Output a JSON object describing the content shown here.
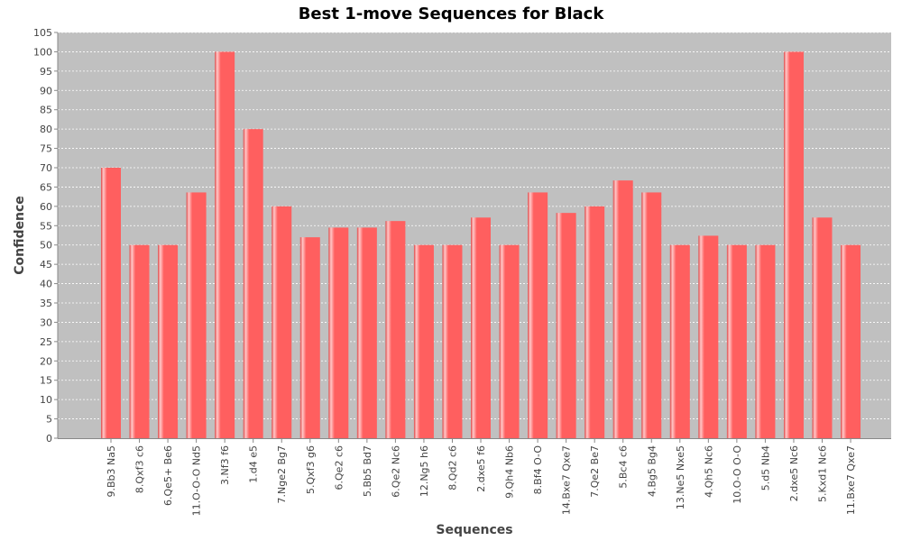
{
  "chart_data": {
    "type": "bar",
    "title": "Best 1-move Sequences for Black",
    "xlabel": "Sequences",
    "ylabel": "Confidence",
    "ylim": [
      0,
      105
    ],
    "y_ticks": [
      0,
      5,
      10,
      15,
      20,
      25,
      30,
      35,
      40,
      45,
      50,
      55,
      60,
      65,
      70,
      75,
      80,
      85,
      90,
      95,
      100,
      105
    ],
    "grid": true,
    "legend": "none",
    "categories": [
      "9.Bb3 Na5",
      "8.Qxf3 c6",
      "6.Qe5+ Be6",
      "11.O-O-O Nd5",
      "3.Nf3 f6",
      "1.d4 e5",
      "7.Nge2 Bg7",
      "5.Qxf3 g6",
      "6.Qe2 c6",
      "5.Bb5 Bd7",
      "6.Qe2 Nc6",
      "12.Ng5 h6",
      "8.Qd2 c6",
      "2.dxe5 f6",
      "9.Qh4 Nb6",
      "8.Bf4 O-O",
      "14.Bxe7 Qxe7",
      "7.Qe2 Be7",
      "5.Bc4 c6",
      "4.Bg5 Bg4",
      "13.Ne5 Nxe5",
      "4.Qh5 Nc6",
      "10.O-O O-O",
      "5.d5 Nb4",
      "2.dxe5 Nc6",
      "5.Kxd1 Nc6",
      "11.Bxe7 Qxe7"
    ],
    "values": [
      70,
      50,
      50,
      63.6,
      100,
      80,
      60,
      52,
      54.5,
      54.5,
      56.2,
      50,
      50,
      57.1,
      50,
      63.6,
      58.3,
      60,
      66.7,
      63.6,
      50,
      52.4,
      50,
      50,
      100,
      57.1,
      50
    ],
    "colors": {
      "bar": "#ff5f5f",
      "bar_highlight": "#ffc8c8",
      "bar_shadow": "#e04848",
      "plot_bg": "#c0c0c0",
      "grid": "#ffffff",
      "axis": "#888888"
    }
  }
}
